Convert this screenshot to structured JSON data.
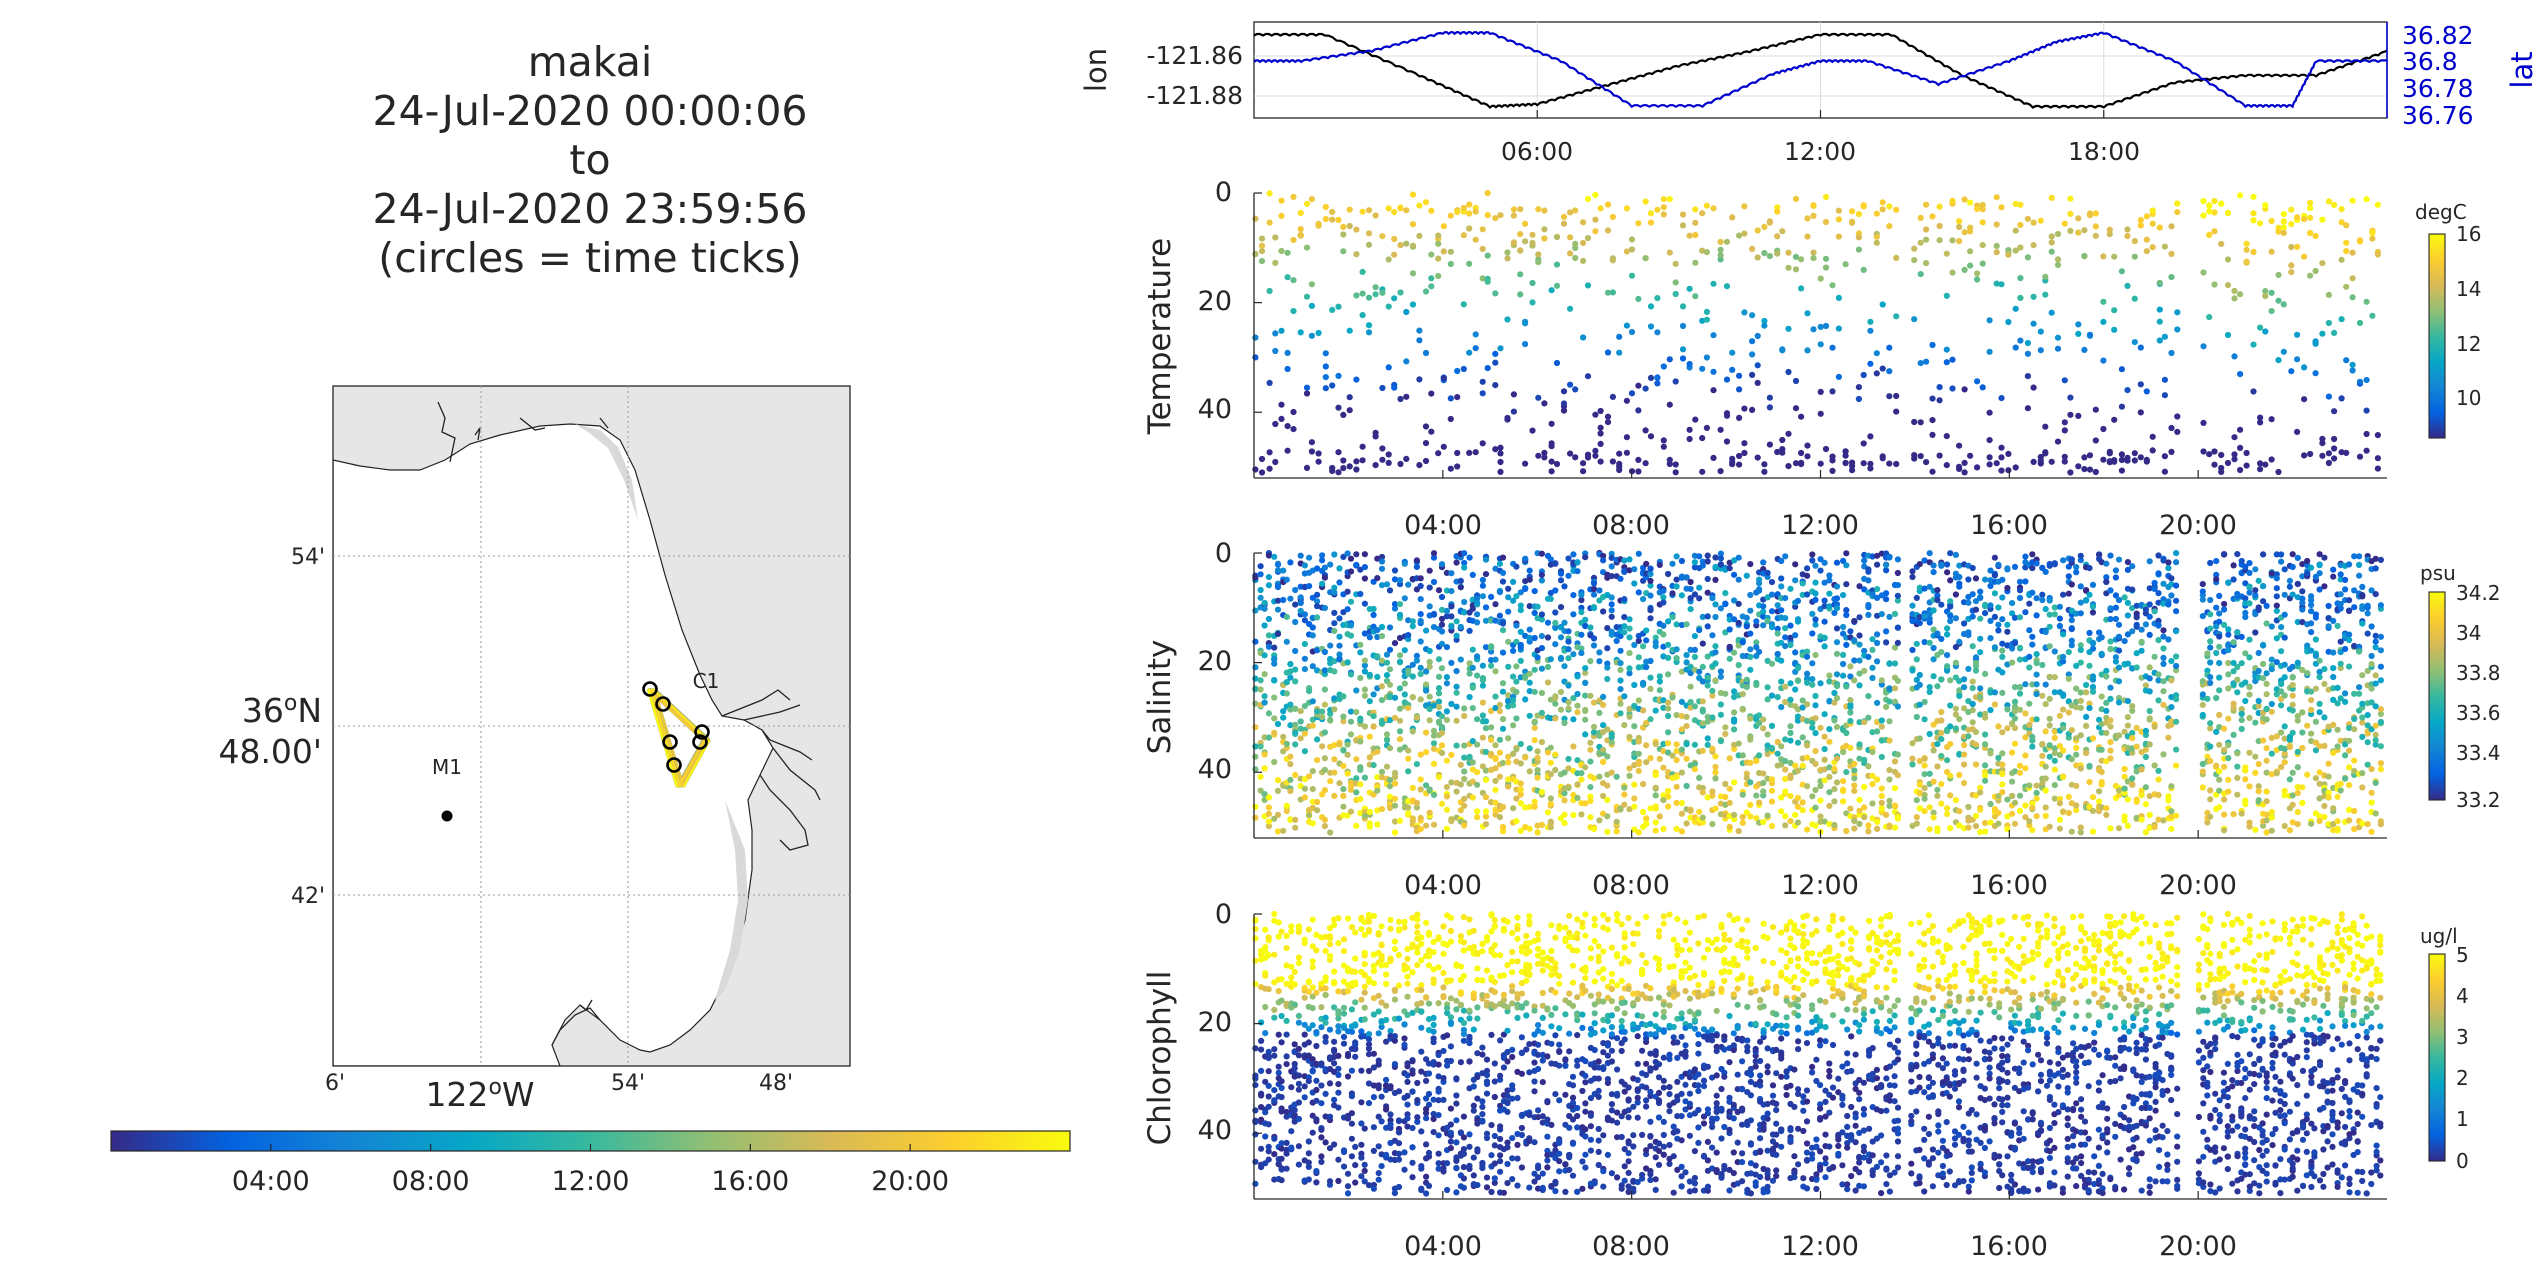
{
  "title": {
    "lines": [
      "makai",
      "24-Jul-2020 00:00:06",
      "to",
      "24-Jul-2020 23:59:56",
      "(circles = time ticks)"
    ]
  },
  "map": {
    "lat_ticks": [
      "54'",
      "42'"
    ],
    "lat_center_label": [
      "36",
      "o",
      "N",
      "48.00'"
    ],
    "lon_ticks": [
      "6'",
      "54'",
      "48'"
    ],
    "lon_center_label": [
      "122",
      "o",
      "W"
    ],
    "stations": [
      "M1",
      "C1"
    ],
    "colors": {
      "land": "#e6e6e6",
      "water": "#ffffff",
      "marker": "#000000"
    }
  },
  "time_colorbar": {
    "tick_labels": [
      "04:00",
      "08:00",
      "12:00",
      "16:00",
      "20:00"
    ],
    "tick_hours": [
      4,
      8,
      12,
      16,
      20
    ],
    "range_hours": [
      0,
      24
    ]
  },
  "nav_panel": {
    "left_ylabel": "lon",
    "right_ylabel": "lat",
    "left_ticks": [
      "-121.86",
      "-121.88"
    ],
    "right_ticks": [
      "36.82",
      "36.8",
      "36.78",
      "36.76"
    ],
    "x_ticks": [
      "06:00",
      "12:00",
      "18:00"
    ],
    "colors": {
      "lon": "#000000",
      "lat": "#0000cc"
    }
  },
  "panels": [
    {
      "ylabel": "Temperature",
      "cbar_units": "degC",
      "cbar_ticks": [
        "16",
        "14",
        "12",
        "10"
      ],
      "y_ticks": [
        "0",
        "20",
        "40"
      ],
      "x_ticks": [
        "04:00",
        "08:00",
        "12:00",
        "16:00",
        "20:00"
      ]
    },
    {
      "ylabel": "Salinity",
      "cbar_units": "psu",
      "cbar_ticks": [
        "34.2",
        "34",
        "33.8",
        "33.6",
        "33.4",
        "33.2"
      ],
      "y_ticks": [
        "0",
        "20",
        "40"
      ],
      "x_ticks": [
        "04:00",
        "08:00",
        "12:00",
        "16:00",
        "20:00"
      ]
    },
    {
      "ylabel": "Chlorophyll",
      "cbar_units": "ug/l",
      "cbar_ticks": [
        "5",
        "4",
        "3",
        "2",
        "1",
        "0"
      ],
      "y_ticks": [
        "0",
        "20",
        "40"
      ],
      "x_ticks": [
        "04:00",
        "08:00",
        "12:00",
        "16:00",
        "20:00"
      ]
    }
  ],
  "chart_data": [
    {
      "type": "line",
      "x_unit": "hour of 24-Jul-2020",
      "xlim": [
        0,
        24
      ],
      "series": [
        {
          "name": "lon",
          "axis": "left",
          "ylim": [
            -121.89,
            -121.85
          ],
          "x": [
            0,
            1.5,
            3.5,
            5.0,
            6.0,
            7.5,
            9.0,
            10.5,
            12.0,
            13.5,
            15.0,
            16.5,
            18.0,
            19.5,
            21.0,
            22.5,
            24.0
          ],
          "y": [
            -121.855,
            -121.855,
            -121.872,
            -121.885,
            -121.884,
            -121.876,
            -121.868,
            -121.862,
            -121.855,
            -121.855,
            -121.872,
            -121.885,
            -121.885,
            -121.875,
            -121.872,
            -121.872,
            -121.862
          ]
        },
        {
          "name": "lat",
          "axis": "right",
          "ylim": [
            36.755,
            36.83
          ],
          "x": [
            0,
            1.0,
            2.5,
            4.0,
            5.0,
            6.5,
            8.0,
            9.5,
            11.0,
            12.0,
            13.0,
            14.5,
            16.0,
            17.0,
            18.0,
            19.5,
            21.0,
            22.0,
            22.5,
            24.0
          ],
          "y": [
            36.8,
            36.8,
            36.808,
            36.822,
            36.822,
            36.8,
            36.765,
            36.765,
            36.79,
            36.8,
            36.8,
            36.782,
            36.8,
            36.815,
            36.822,
            36.8,
            36.765,
            36.765,
            36.8,
            36.8
          ]
        }
      ]
    },
    {
      "type": "scatter",
      "title": "Temperature",
      "xlim": [
        0,
        24
      ],
      "ylim": [
        52,
        0
      ],
      "clim": [
        8.5,
        16
      ],
      "units": "degC",
      "gaps": [
        [
          13.7,
          13.9
        ],
        [
          19.6,
          20.0
        ]
      ]
    },
    {
      "type": "scatter",
      "title": "Salinity",
      "xlim": [
        0,
        24
      ],
      "ylim": [
        52,
        0
      ],
      "clim": [
        33.2,
        34.2
      ],
      "units": "psu",
      "gaps": [
        [
          13.7,
          13.9
        ],
        [
          19.6,
          20.0
        ]
      ]
    },
    {
      "type": "scatter",
      "title": "Chlorophyll",
      "xlim": [
        0,
        24
      ],
      "ylim": [
        52,
        0
      ],
      "clim": [
        0,
        5
      ],
      "units": "ug/l",
      "gaps": [
        [
          13.7,
          13.9
        ],
        [
          19.6,
          20.0
        ]
      ]
    }
  ]
}
